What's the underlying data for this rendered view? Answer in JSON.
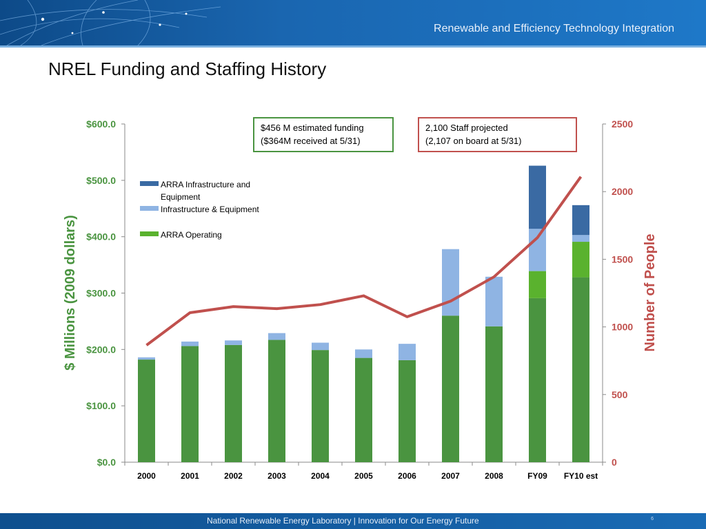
{
  "header": {
    "title": "Renewable and Efficiency Technology Integration"
  },
  "page": {
    "title": "NREL Funding and Staffing History"
  },
  "footer": {
    "text": "National Renewable Energy Laboratory   |   Innovation for Our Energy Future",
    "page_number": "6"
  },
  "chart_data": {
    "type": "bar",
    "stacked": true,
    "categories": [
      "2000",
      "2001",
      "2002",
      "2003",
      "2004",
      "2005",
      "2006",
      "2007",
      "2008",
      "FY09",
      "FY10 est"
    ],
    "y_left": {
      "label": "$ Millions (2009 dollars)",
      "ticks": [
        "$0.0",
        "$100.0",
        "$200.0",
        "$300.0",
        "$400.0",
        "$500.0",
        "$600.0"
      ],
      "min": 0,
      "max": 600
    },
    "y_right": {
      "label": "Number of People",
      "ticks": [
        "0",
        "500",
        "1000",
        "1500",
        "2000",
        "2500"
      ],
      "min": 0,
      "max": 2500
    },
    "series": [
      {
        "name": "",
        "type": "bar",
        "color": "#4a9440",
        "values": [
          182,
          206,
          208,
          217,
          199,
          185,
          181,
          260,
          241,
          291,
          328
        ]
      },
      {
        "name": "ARRA Operating",
        "type": "bar",
        "color": "#5ab22e",
        "values": [
          0,
          0,
          0,
          0,
          0,
          0,
          0,
          0,
          0,
          48,
          63
        ]
      },
      {
        "name": "Infrastructure & Equipment",
        "type": "bar",
        "color": "#8fb4e3",
        "values": [
          4,
          8,
          8,
          12,
          13,
          15,
          29,
          118,
          88,
          75,
          12
        ]
      },
      {
        "name": "ARRA Infrastructure and Equipment",
        "type": "bar",
        "color": "#3a6aa3",
        "values": [
          0,
          0,
          0,
          0,
          0,
          0,
          0,
          0,
          0,
          112,
          53
        ]
      },
      {
        "name": "",
        "type": "line",
        "axis": "right",
        "color": "#c0504d",
        "values": [
          865,
          1105,
          1150,
          1135,
          1165,
          1230,
          1075,
          1190,
          1370,
          1660,
          2110
        ]
      }
    ],
    "legend": {
      "placement": "upper-left",
      "items": [
        {
          "label_lines": [
            "ARRA Infrastructure and",
            "Equipment"
          ],
          "color": "#3a6aa3"
        },
        {
          "label_lines": [
            "Infrastructure & Equipment"
          ],
          "color": "#8fb4e3"
        },
        {
          "label_lines": [
            "ARRA Operating"
          ],
          "color": "#5ab22e"
        }
      ]
    },
    "annotations": [
      {
        "lines": [
          "$456 M estimated funding",
          "($364M received at 5/31)"
        ],
        "border": "#4a9440"
      },
      {
        "lines": [
          "2,100 Staff projected",
          "(2,107 on board at 5/31)"
        ],
        "border": "#c0504d"
      }
    ]
  }
}
